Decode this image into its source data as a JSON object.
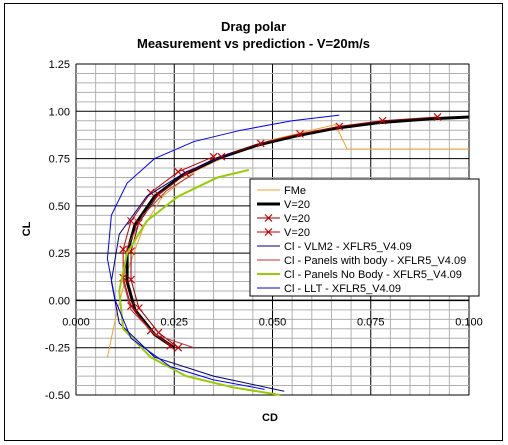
{
  "chart_data": {
    "type": "line",
    "title": "Drag polar",
    "subtitle": "Measurement vs prediction - V=20m/s",
    "xlabel": "CD",
    "ylabel": "CL",
    "xlim": [
      0.0,
      0.1
    ],
    "ylim": [
      -0.5,
      1.25
    ],
    "x_ticks": [
      "0.000",
      "0.025",
      "0.050",
      "0.075",
      "0.100"
    ],
    "y_ticks": [
      "1.25",
      "1.00",
      "0.75",
      "0.50",
      "0.25",
      "0.00",
      "-0.25",
      "-0.50"
    ],
    "grid": true,
    "legend_position": "right",
    "series": [
      {
        "name": "FMe",
        "color": "#f0a030",
        "marker": "none",
        "x": [
          0.008,
          0.01,
          0.013,
          0.017,
          0.022,
          0.03,
          0.04,
          0.05,
          0.06,
          0.066,
          0.069,
          0.1
        ],
        "y": [
          -0.3,
          -0.1,
          0.15,
          0.38,
          0.55,
          0.68,
          0.78,
          0.85,
          0.9,
          0.93,
          0.8,
          0.8
        ]
      },
      {
        "name": "V=20",
        "color": "#000000",
        "marker": "none",
        "x": [
          0.025,
          0.02,
          0.015,
          0.013,
          0.013,
          0.015,
          0.02,
          0.027,
          0.036,
          0.046,
          0.056,
          0.066,
          0.077,
          0.09,
          0.1
        ],
        "y": [
          -0.25,
          -0.18,
          -0.05,
          0.1,
          0.25,
          0.4,
          0.55,
          0.66,
          0.75,
          0.82,
          0.87,
          0.91,
          0.94,
          0.96,
          0.97
        ]
      },
      {
        "name": "V=20",
        "color": "#8b0000",
        "marker": "x",
        "x": [
          0.026,
          0.021,
          0.016,
          0.014,
          0.014,
          0.016,
          0.021,
          0.028,
          0.037,
          0.047,
          0.057,
          0.067,
          0.078,
          0.092
        ],
        "y": [
          -0.25,
          -0.17,
          -0.04,
          0.11,
          0.26,
          0.41,
          0.56,
          0.67,
          0.76,
          0.83,
          0.88,
          0.92,
          0.95,
          0.97
        ]
      },
      {
        "name": "V=20",
        "color": "#c00000",
        "marker": "x",
        "x": [
          0.024,
          0.019,
          0.014,
          0.012,
          0.012,
          0.014,
          0.019,
          0.026,
          0.035
        ],
        "y": [
          -0.24,
          -0.16,
          -0.03,
          0.12,
          0.27,
          0.42,
          0.57,
          0.68,
          0.76
        ]
      },
      {
        "name": "Cl - VLM2 - XFLR5_V4.09",
        "color": "#000080",
        "marker": "none",
        "x": [
          0.053,
          0.035,
          0.02,
          0.011,
          0.009,
          0.011,
          0.018,
          0.028,
          0.04
        ],
        "y": [
          -0.48,
          -0.4,
          -0.3,
          -0.12,
          0.1,
          0.35,
          0.55,
          0.68,
          0.78
        ]
      },
      {
        "name": "Cl - Panels with body - XFLR5_V4.09",
        "color": "#c03030",
        "marker": "none",
        "x": [
          0.03,
          0.02,
          0.014,
          0.012,
          0.013,
          0.017,
          0.023,
          0.03
        ],
        "y": [
          -0.25,
          -0.18,
          -0.05,
          0.1,
          0.28,
          0.45,
          0.58,
          0.67
        ]
      },
      {
        "name": "Cl - Panels No Body - XFLR5_V4.09",
        "color": "#99cc00",
        "marker": "none",
        "x": [
          0.052,
          0.04,
          0.028,
          0.019,
          0.012,
          0.011,
          0.013,
          0.018,
          0.026,
          0.036,
          0.044
        ],
        "y": [
          -0.5,
          -0.46,
          -0.4,
          -0.3,
          -0.15,
          0.05,
          0.25,
          0.42,
          0.55,
          0.65,
          0.69
        ]
      },
      {
        "name": "Cl - LLT - XFLR5_V4.09",
        "color": "#0000ff",
        "marker": "none",
        "x": [
          0.048,
          0.035,
          0.024,
          0.014,
          0.01,
          0.008,
          0.009,
          0.013,
          0.02,
          0.03,
          0.042,
          0.055,
          0.067
        ],
        "y": [
          -0.47,
          -0.42,
          -0.35,
          -0.2,
          0.0,
          0.22,
          0.45,
          0.62,
          0.75,
          0.84,
          0.9,
          0.95,
          0.98
        ]
      }
    ]
  }
}
